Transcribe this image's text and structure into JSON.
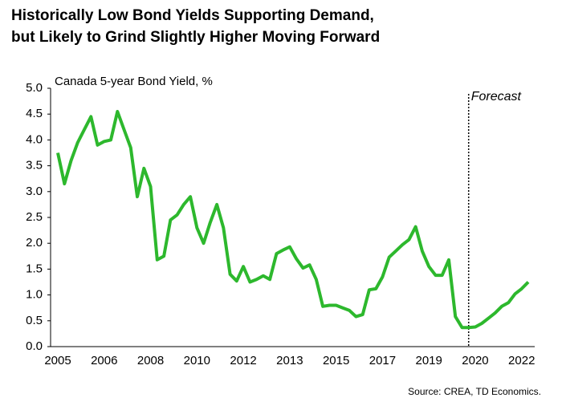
{
  "chart_data": {
    "type": "line",
    "title": [
      "Historically Low Bond Yields Supporting Demand,",
      "but Likely to Grind Slightly Higher Moving Forward"
    ],
    "y_axis_label": "Canada 5-year Bond Yield, %",
    "source": "Source: CREA,  TD Economics.",
    "annotations": [
      {
        "label": "Forecast",
        "category_index": 62
      }
    ],
    "categories": [
      "2005",
      null,
      null,
      null,
      null,
      null,
      null,
      "2006",
      null,
      null,
      null,
      null,
      null,
      null,
      "2008",
      null,
      null,
      null,
      null,
      null,
      null,
      "2010",
      null,
      null,
      null,
      null,
      null,
      null,
      "2012",
      null,
      null,
      null,
      null,
      null,
      null,
      "2013",
      null,
      null,
      null,
      null,
      null,
      null,
      "2015",
      null,
      null,
      null,
      null,
      null,
      null,
      "2017",
      null,
      null,
      null,
      null,
      null,
      null,
      "2019",
      null,
      null,
      null,
      null,
      null,
      null,
      "2020",
      null,
      null,
      null,
      null,
      null,
      null,
      "2022",
      null
    ],
    "series": [
      {
        "name": "Canada 5-year Bond Yield",
        "color": "#2db82d",
        "values": [
          3.75,
          3.15,
          3.6,
          3.95,
          4.2,
          4.45,
          3.9,
          3.97,
          4.0,
          4.55,
          4.2,
          3.85,
          2.9,
          3.45,
          3.1,
          1.68,
          1.75,
          2.45,
          2.55,
          2.75,
          2.9,
          2.3,
          2.0,
          2.4,
          2.75,
          2.3,
          1.4,
          1.27,
          1.55,
          1.25,
          1.3,
          1.37,
          1.3,
          1.8,
          1.87,
          1.93,
          1.7,
          1.52,
          1.58,
          1.3,
          0.78,
          0.8,
          0.8,
          0.75,
          0.7,
          0.58,
          0.62,
          1.1,
          1.12,
          1.35,
          1.73,
          1.85,
          1.97,
          2.07,
          2.32,
          1.85,
          1.55,
          1.38,
          1.38,
          1.68,
          0.58,
          0.37,
          0.37,
          0.38,
          0.45,
          0.55,
          0.65,
          0.78,
          0.85,
          1.02,
          1.12,
          1.25
        ]
      }
    ],
    "ylim": [
      0,
      5
    ],
    "yticks": [
      {
        "value": 0,
        "label": "0.0"
      },
      0.5,
      {
        "value": 1,
        "label": "1.0"
      },
      1.5,
      {
        "value": 2,
        "label": "2.0"
      },
      2.5,
      {
        "value": 3,
        "label": "3.0"
      },
      3.5,
      {
        "value": 4,
        "label": "4.0"
      },
      4.5,
      {
        "value": 5,
        "label": "5.0"
      }
    ],
    "grid": false
  }
}
